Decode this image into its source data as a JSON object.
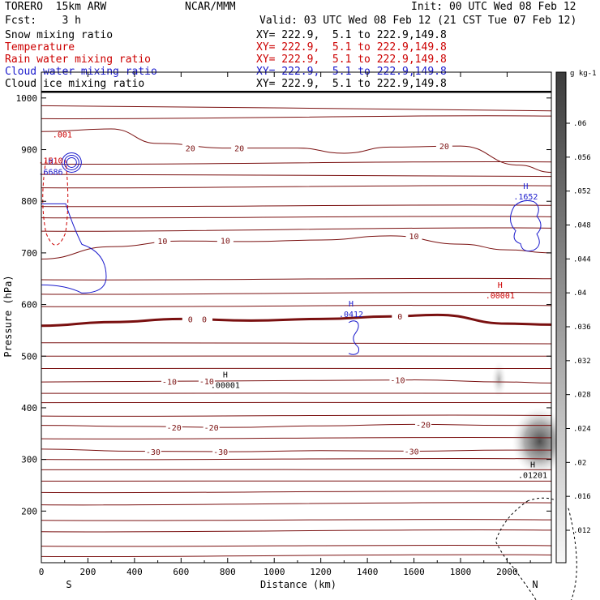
{
  "header": {
    "model": "TORERO  15km ARW",
    "center": "NCAR/MMM",
    "init": "Init: 00 UTC Wed 08 Feb 12",
    "fcst": "Fcst:    3 h",
    "valid": "Valid: 03 UTC Wed 08 Feb 12 (21 CST Tue 07 Feb 12)"
  },
  "fields": [
    {
      "name": "Snow mixing ratio",
      "xy": "XY= 222.9,  5.1 to 222.9,149.8",
      "color": "#000000"
    },
    {
      "name": "Temperature",
      "xy": "XY= 222.9,  5.1 to 222.9,149.8",
      "color": "#cc0000"
    },
    {
      "name": "Rain water mixing ratio",
      "xy": "XY= 222.9,  5.1 to 222.9,149.8",
      "color": "#cc0000"
    },
    {
      "name": "Cloud water mixing ratio",
      "xy": "XY= 222.9,  5.1 to 222.9,149.8",
      "color": "#1a1acc"
    },
    {
      "name": "Cloud ice mixing ratio",
      "xy": "XY= 222.9,  5.1 to 222.9,149.8",
      "color": "#000000"
    }
  ],
  "chart_data": {
    "type": "cross-section",
    "xlabel": "Distance (km)",
    "ylabel": "Pressure (hPa)",
    "xlim": [
      0,
      2190
    ],
    "ylim": [
      1050,
      100
    ],
    "x_ticks": [
      0,
      200,
      400,
      600,
      800,
      1000,
      1200,
      1400,
      1600,
      1800,
      2000
    ],
    "y_ticks": [
      200,
      300,
      400,
      500,
      600,
      700,
      800,
      900,
      1000
    ],
    "end_labels": {
      "left": "S",
      "right": "N"
    },
    "colorbar": {
      "unit": "g kg-1",
      "levels": [
        ".012",
        ".016",
        ".02",
        ".024",
        ".028",
        ".032",
        ".036",
        ".04",
        ".044",
        ".048",
        ".052",
        ".056",
        ".06"
      ]
    },
    "temperature_contours": [
      {
        "label": "-30",
        "value": -30,
        "labels_at": [
          [
            480,
            315
          ],
          [
            770,
            315
          ],
          [
            1590,
            316
          ]
        ],
        "points": [
          [
            0,
            320
          ],
          [
            400,
            316
          ],
          [
            800,
            315
          ],
          [
            1200,
            317
          ],
          [
            1600,
            316
          ],
          [
            2000,
            318
          ],
          [
            2190,
            318
          ]
        ]
      },
      {
        "label": "-20",
        "value": -20,
        "labels_at": [
          [
            570,
            362
          ],
          [
            730,
            362
          ],
          [
            1640,
            368
          ]
        ],
        "points": [
          [
            0,
            366
          ],
          [
            400,
            364
          ],
          [
            800,
            362
          ],
          [
            1200,
            365
          ],
          [
            1600,
            368
          ],
          [
            2000,
            366
          ],
          [
            2190,
            366
          ]
        ]
      },
      {
        "label": "-10",
        "value": -10,
        "labels_at": [
          [
            550,
            451
          ],
          [
            710,
            452
          ],
          [
            1530,
            454
          ]
        ],
        "points": [
          [
            0,
            450
          ],
          [
            400,
            451
          ],
          [
            800,
            452
          ],
          [
            1200,
            453
          ],
          [
            1600,
            454
          ],
          [
            2000,
            450
          ],
          [
            2190,
            448
          ]
        ]
      },
      {
        "label": "0",
        "value": 0,
        "labels_at": [
          [
            640,
            572
          ],
          [
            700,
            572
          ],
          [
            1540,
            577
          ]
        ],
        "points": [
          [
            0,
            559
          ],
          [
            300,
            566
          ],
          [
            600,
            572
          ],
          [
            900,
            569
          ],
          [
            1200,
            572
          ],
          [
            1500,
            577
          ],
          [
            1700,
            580
          ],
          [
            2000,
            563
          ],
          [
            2190,
            561
          ]
        ]
      },
      {
        "label": "10",
        "value": 10,
        "labels_at": [
          [
            520,
            723
          ],
          [
            790,
            724
          ],
          [
            1600,
            733
          ]
        ],
        "points": [
          [
            0,
            688
          ],
          [
            300,
            712
          ],
          [
            600,
            723
          ],
          [
            900,
            722
          ],
          [
            1200,
            725
          ],
          [
            1500,
            733
          ],
          [
            1800,
            717
          ],
          [
            2000,
            706
          ],
          [
            2190,
            700
          ]
        ]
      },
      {
        "label": "20",
        "value": 20,
        "labels_at": [
          [
            640,
            903
          ],
          [
            850,
            903
          ],
          [
            1730,
            907
          ]
        ],
        "points": [
          [
            0,
            935
          ],
          [
            300,
            940
          ],
          [
            500,
            912
          ],
          [
            800,
            903
          ],
          [
            1100,
            903
          ],
          [
            1300,
            893
          ],
          [
            1500,
            905
          ],
          [
            1800,
            907
          ],
          [
            2050,
            870
          ],
          [
            2190,
            856
          ]
        ]
      }
    ],
    "annotations": [
      {
        "field": "Cloud ice mixing ratio",
        "label": "H",
        "value": ".00001",
        "x": 790,
        "y": 445
      },
      {
        "field": "Snow mixing ratio",
        "label": "H",
        "value": ".01201",
        "x": 2110,
        "y": 270
      },
      {
        "field": "Cloud water mixing ratio",
        "label": "H",
        "value": ".0412",
        "x": 1330,
        "y": 582
      },
      {
        "field": "Rain water mixing ratio",
        "label": "H",
        "value": ".00001",
        "x": 1970,
        "y": 618
      },
      {
        "field": "Cloud water mixing ratio",
        "label": "H",
        "value": ".1652",
        "x": 2080,
        "y": 810
      },
      {
        "field": "Cloud water mixing ratio",
        "label": "H",
        "value": ".6686",
        "x": 40,
        "y": 858
      },
      {
        "field": "Rain water mixing ratio",
        "label": "",
        "value": ".1510",
        "x": 40,
        "y": 880
      },
      {
        "field": "Rain water mixing ratio",
        "label": "",
        "value": ".001",
        "x": 90,
        "y": 930
      }
    ]
  }
}
